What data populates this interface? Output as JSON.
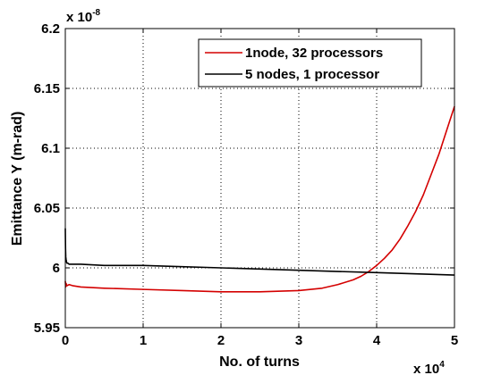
{
  "chart_data": {
    "type": "line",
    "xlabel": "No. of turns",
    "ylabel": "Emittance Y (m-rad)",
    "x_multiplier": {
      "base": "x 10",
      "exponent": "4"
    },
    "y_multiplier": {
      "base": "x 10",
      "exponent": "-8"
    },
    "xlim": [
      0,
      50000
    ],
    "ylim": [
      5.95e-08,
      6.2e-08
    ],
    "x_ticks": [
      0,
      10000,
      20000,
      30000,
      40000,
      50000
    ],
    "x_tick_labels": [
      "0",
      "1",
      "2",
      "3",
      "4",
      "5"
    ],
    "y_ticks": [
      5.95e-08,
      6e-08,
      6.05e-08,
      6.1e-08,
      6.15e-08,
      6.2e-08
    ],
    "y_tick_labels": [
      "5.95",
      "6",
      "6.05",
      "6.1",
      "6.15",
      "6.2"
    ],
    "grid": true,
    "legend_position": "top-right",
    "series": [
      {
        "name": "1node, 32 processors",
        "color": "#d40000",
        "x": [
          0,
          50,
          100,
          200,
          500,
          1000,
          2000,
          5000,
          10000,
          15000,
          20000,
          25000,
          30000,
          33000,
          35000,
          37000,
          38000,
          39000,
          40000,
          41000,
          42000,
          43000,
          44000,
          45000,
          46000,
          47000,
          48000,
          49000,
          50000
        ],
        "y": [
          5.989e-08,
          5.984e-08,
          5.987e-08,
          5.985e-08,
          5.986e-08,
          5.985e-08,
          5.984e-08,
          5.983e-08,
          5.982e-08,
          5.981e-08,
          5.98e-08,
          5.98e-08,
          5.981e-08,
          5.983e-08,
          5.986e-08,
          5.99e-08,
          5.993e-08,
          5.997e-08,
          6.002e-08,
          6.008e-08,
          6.015e-08,
          6.024e-08,
          6.035e-08,
          6.047e-08,
          6.061e-08,
          6.078e-08,
          6.095e-08,
          6.115e-08,
          6.135e-08
        ]
      },
      {
        "name": "5 nodes, 1 processor",
        "color": "#000000",
        "x": [
          0,
          30,
          60,
          100,
          150,
          200,
          300,
          500,
          700,
          1000,
          2000,
          5000,
          10000,
          15000,
          20000,
          25000,
          30000,
          35000,
          40000,
          45000,
          50000
        ],
        "y": [
          6.033e-08,
          6.016e-08,
          6.009e-08,
          6.007e-08,
          6.005e-08,
          6.004e-08,
          6.004e-08,
          6.003e-08,
          6.003e-08,
          6.003e-08,
          6.003e-08,
          6.002e-08,
          6.002e-08,
          6.001e-08,
          6e-08,
          5.999e-08,
          5.998e-08,
          5.997e-08,
          5.996e-08,
          5.995e-08,
          5.994e-08
        ]
      }
    ]
  }
}
